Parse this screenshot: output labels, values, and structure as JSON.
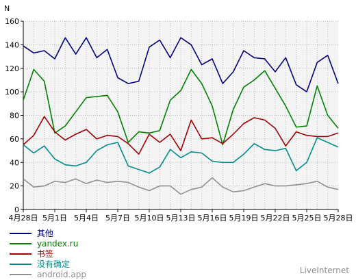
{
  "chart_data": {
    "type": "line",
    "ylabel": "N",
    "ylim": [
      0,
      160
    ],
    "yticks": [
      0,
      20,
      40,
      60,
      80,
      100,
      120,
      140,
      160
    ],
    "x": [
      "4月28日",
      "4月29日",
      "4月30日",
      "5月1日",
      "5月2日",
      "5月3日",
      "5月4日",
      "5月5日",
      "5月6日",
      "5月7日",
      "5月8日",
      "5月9日",
      "5月10日",
      "5月11日",
      "5月12日",
      "5月13日",
      "5月14日",
      "5月15日",
      "5月16日",
      "5月17日",
      "5月18日",
      "5月19日",
      "5月20日",
      "5月21日",
      "5月22日",
      "5月23日",
      "5月24日",
      "5月25日",
      "5月26日",
      "5月27日",
      "5月28日"
    ],
    "xtick_labels": [
      "4月28日",
      "5月1日",
      "5月4日",
      "5月7日",
      "5月10日",
      "5月13日",
      "5月16日",
      "5月19日",
      "5月22日",
      "5月25日",
      "5月28日"
    ],
    "grid": true,
    "legend_position": "bottom-left",
    "series": [
      {
        "name": "其他",
        "color": "#000080",
        "values": [
          139,
          133,
          135,
          128,
          146,
          132,
          146,
          129,
          136,
          112,
          107,
          109,
          138,
          144,
          129,
          146,
          140,
          123,
          128,
          107,
          117,
          135,
          129,
          128,
          117,
          129,
          106,
          100,
          125,
          131,
          107
        ]
      },
      {
        "name": "yandex.ru",
        "color": "#008000",
        "values": [
          93,
          119,
          109,
          65,
          71,
          83,
          95,
          96,
          97,
          83,
          57,
          66,
          65,
          67,
          93,
          101,
          119,
          107,
          88,
          55,
          85,
          104,
          110,
          118,
          103,
          88,
          70,
          71,
          105,
          80,
          69
        ]
      },
      {
        "name": "书签",
        "color": "#a00000",
        "values": [
          55,
          63,
          79,
          66,
          59,
          64,
          68,
          60,
          63,
          62,
          56,
          47,
          64,
          57,
          64,
          50,
          76,
          60,
          61,
          56,
          64,
          73,
          78,
          76,
          69,
          54,
          66,
          63,
          62,
          62,
          65
        ]
      },
      {
        "name": "没有确定",
        "color": "#008b8b",
        "values": [
          55,
          48,
          54,
          43,
          38,
          37,
          40,
          50,
          55,
          57,
          37,
          34,
          31,
          36,
          51,
          44,
          49,
          48,
          41,
          40,
          40,
          47,
          56,
          51,
          50,
          52,
          33,
          40,
          61,
          57,
          53
        ]
      },
      {
        "name": "android.app",
        "color": "#909090",
        "values": [
          26,
          19,
          20,
          24,
          23,
          26,
          22,
          25,
          23,
          24,
          23,
          19,
          16,
          20,
          20,
          13,
          17,
          19,
          27,
          19,
          15,
          16,
          19,
          22,
          20,
          20,
          21,
          22,
          24,
          19,
          17
        ]
      }
    ]
  },
  "brand": "LiveInternet"
}
